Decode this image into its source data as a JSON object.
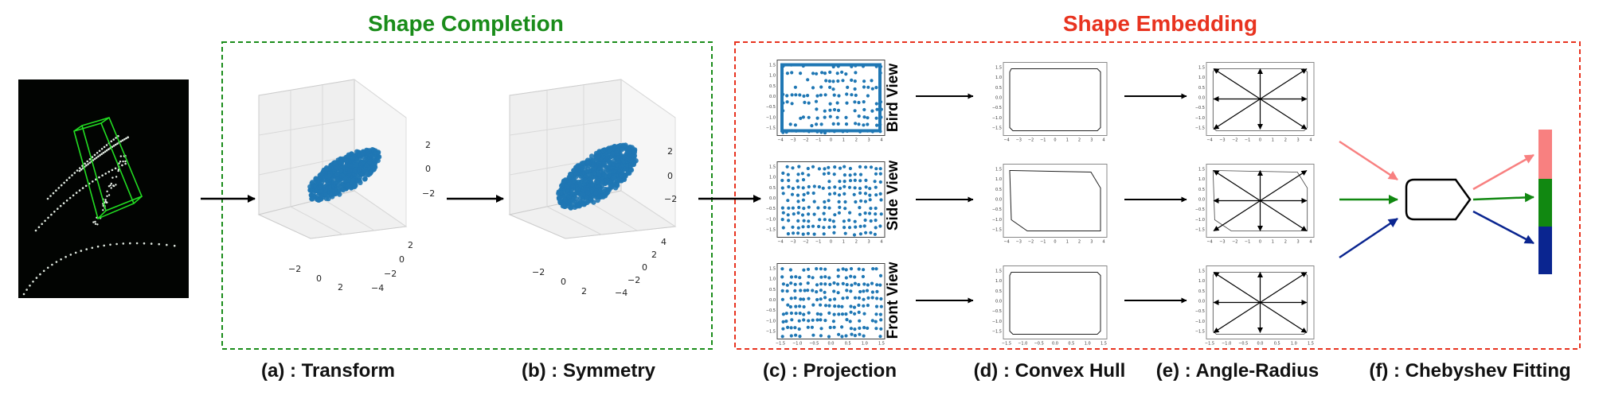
{
  "sections": {
    "completion_title": "Shape Completion",
    "embedding_title": "Shape Embedding",
    "completion_color": "#1a8c1a",
    "embedding_color": "#e8331f"
  },
  "steps": {
    "a": "(a) : Transform",
    "b": "(b) : Symmetry",
    "c": "(c) : Projection",
    "d": "(d) : Convex Hull",
    "e": "(e) : Angle-Radius",
    "f": "(f) : Chebyshev Fitting"
  },
  "views": {
    "bird": "Bird View",
    "side": "Side View",
    "front": "Front View"
  },
  "plot3d_ticks": {
    "z": [
      "2",
      "0",
      "−2"
    ],
    "y": [
      "2",
      "0",
      "−2",
      "−4"
    ],
    "x": [
      "−2",
      "0",
      "2"
    ],
    "y_b": [
      "4",
      "2",
      "0",
      "−2",
      "−4"
    ]
  },
  "proj_ticks": {
    "x": [
      "−4",
      "−3",
      "−2",
      "−1",
      "0",
      "1",
      "2",
      "3",
      "4"
    ],
    "x_front": [
      "−1.5",
      "−1.0",
      "−0.5",
      "0.0",
      "0.5",
      "1.0",
      "1.5"
    ],
    "y": [
      "1.5",
      "1.0",
      "0.5",
      "0.0",
      "−0.5",
      "−1.0",
      "−1.5"
    ]
  },
  "colors": {
    "points": "#1f77b4",
    "bar_red": "#f88080",
    "bar_green": "#118811",
    "bar_blue": "#0a2590",
    "lidar_box": "#22dd22"
  }
}
